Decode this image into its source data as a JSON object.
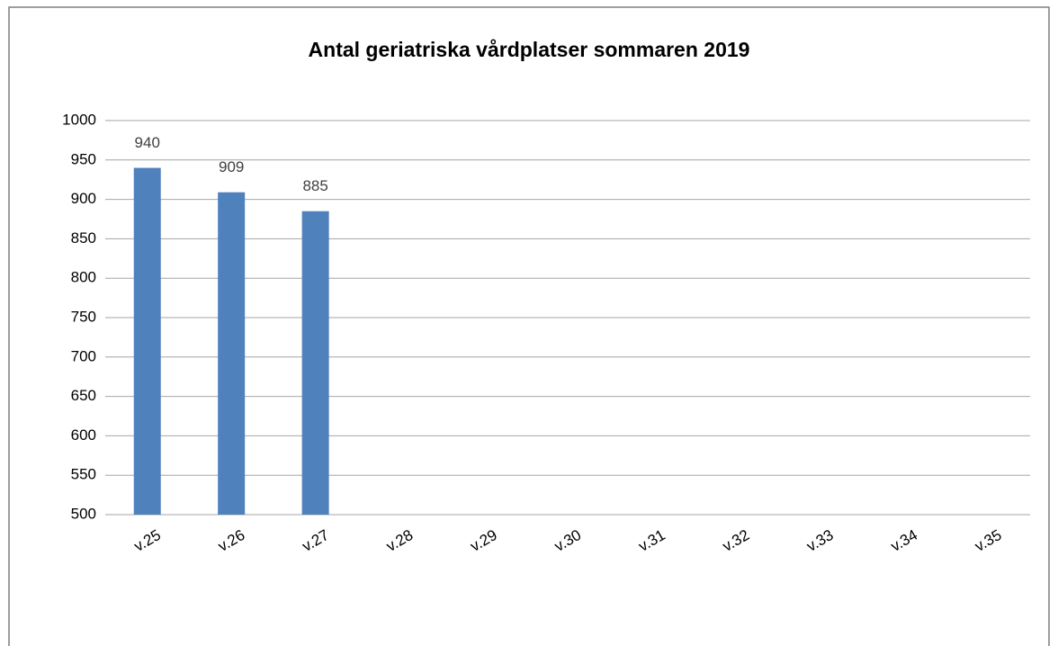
{
  "chart_data": {
    "type": "bar",
    "title": "Antal geriatriska vårdplatser sommaren 2019",
    "categories": [
      "v.25",
      "v.26",
      "v.27",
      "v.28",
      "v.29",
      "v.30",
      "v.31",
      "v.32",
      "v.33",
      "v.34",
      "v.35"
    ],
    "values": [
      940,
      909,
      885,
      null,
      null,
      null,
      null,
      null,
      null,
      null,
      null
    ],
    "color": "#4f81bd",
    "ylim": [
      500,
      1000
    ],
    "yticks": [
      500,
      550,
      600,
      650,
      700,
      750,
      800,
      850,
      900,
      950,
      1000
    ],
    "grid": true
  }
}
